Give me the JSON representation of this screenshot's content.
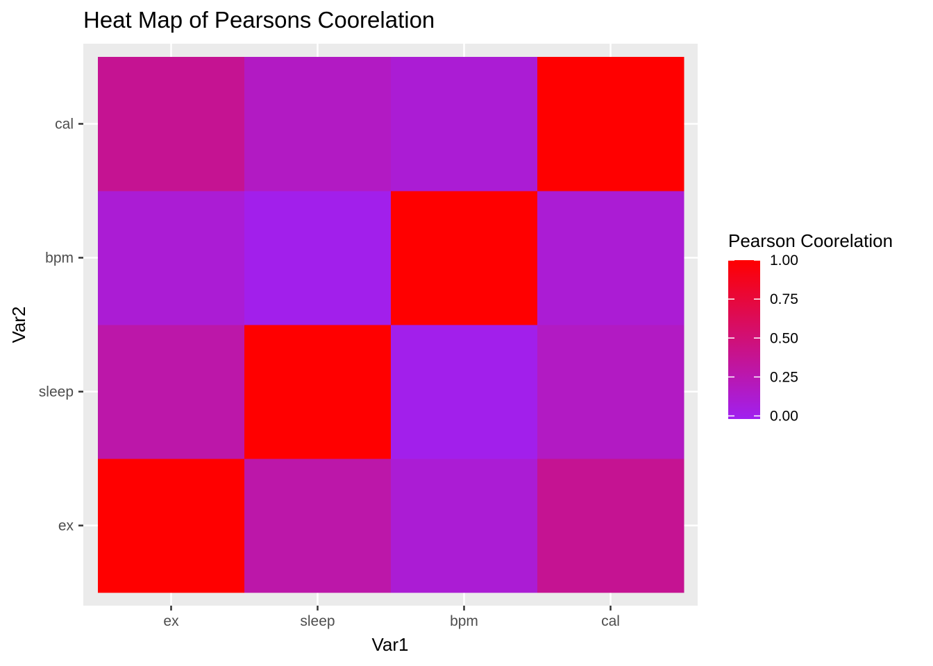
{
  "chart_data": {
    "type": "heatmap",
    "title": "Heat Map of Pearsons Coorelation",
    "xlabel": "Var1",
    "ylabel": "Var2",
    "x_categories": [
      "ex",
      "sleep",
      "bpm",
      "cal"
    ],
    "y_categories": [
      "ex",
      "sleep",
      "bpm",
      "cal"
    ],
    "values": [
      [
        1.0,
        0.28,
        0.1,
        0.38
      ],
      [
        0.28,
        1.0,
        0.0,
        0.17
      ],
      [
        0.1,
        0.0,
        1.0,
        0.1
      ],
      [
        0.38,
        0.17,
        0.1,
        1.0
      ]
    ],
    "legend": {
      "title": "Pearson Coorelation",
      "placement": "right",
      "ticks": [
        1.0,
        0.75,
        0.5,
        0.25,
        0.0
      ],
      "tick_labels": [
        "1.00",
        "0.75",
        "0.50",
        "0.25",
        "0.00"
      ]
    },
    "color_scale": {
      "low": "#a020f0",
      "high": "#ff0000",
      "domain": [
        -0.02,
        1.0
      ]
    },
    "panel_background": "#ebebeb",
    "grid": true
  }
}
